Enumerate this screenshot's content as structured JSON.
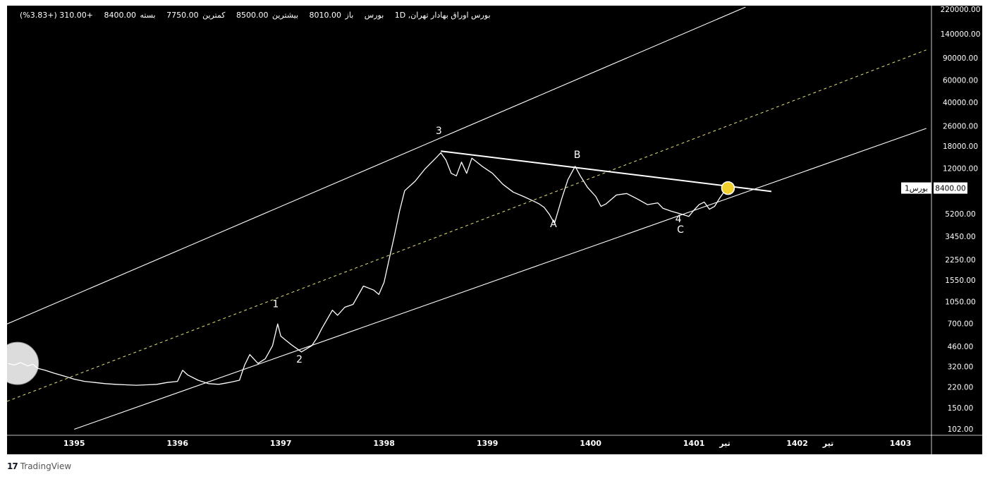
{
  "legend": {
    "symbol": "بورس اوراق بهادار تهران, 1D",
    "exchange": "بورس",
    "open_label": "باز",
    "open": "8010.00",
    "high_label": "بیشترین",
    "high": "8500.00",
    "low_label": "کمترین",
    "low": "7750.00",
    "close_label": "بسته",
    "close": "8400.00",
    "change": "+310.00 (+3.83%)"
  },
  "price_badge": {
    "label": "بورس1",
    "value": "8400.00"
  },
  "footer": {
    "logo": "17",
    "brand": "TradingView"
  },
  "colors": {
    "background": "#000000",
    "line": "#ffffff",
    "midline": "#e8e07a",
    "marker": "#f2d12e"
  },
  "chart_data": {
    "type": "line",
    "yscale": "log",
    "ylim": [
      95,
      230000
    ],
    "xlim": [
      1394.35,
      1403.3
    ],
    "y_ticks": [
      "220000.00",
      "140000.00",
      "90000.00",
      "60000.00",
      "40000.00",
      "26000.00",
      "18000.00",
      "12000.00",
      "8400.00",
      "5200.00",
      "3450.00",
      "2250.00",
      "1550.00",
      "1050.00",
      "700.00",
      "460.00",
      "320.00",
      "220.00",
      "150.00",
      "102.00"
    ],
    "y_tick_values": [
      220000,
      140000,
      90000,
      60000,
      40000,
      26000,
      18000,
      12000,
      8400,
      5200,
      3450,
      2250,
      1550,
      1050,
      700,
      460,
      320,
      220,
      150,
      102
    ],
    "x_ticks": [
      {
        "label": "1395",
        "x": 1395.0
      },
      {
        "label": "1396",
        "x": 1396.0
      },
      {
        "label": "1397",
        "x": 1397.0
      },
      {
        "label": "1398",
        "x": 1398.0
      },
      {
        "label": "1399",
        "x": 1399.0
      },
      {
        "label": "1400",
        "x": 1400.0
      },
      {
        "label": "1401",
        "x": 1401.0
      },
      {
        "label": "تیر",
        "x": 1401.3
      },
      {
        "label": "1402",
        "x": 1402.0
      },
      {
        "label": "تیر",
        "x": 1402.3
      },
      {
        "label": "1403",
        "x": 1403.0
      }
    ],
    "series": [
      {
        "points": [
          [
            1394.36,
            340
          ],
          [
            1394.42,
            330
          ],
          [
            1394.48,
            345
          ],
          [
            1394.55,
            325
          ],
          [
            1394.6,
            335
          ],
          [
            1394.65,
            310
          ],
          [
            1394.72,
            300
          ],
          [
            1394.8,
            285
          ],
          [
            1394.9,
            270
          ],
          [
            1395.0,
            255
          ],
          [
            1395.1,
            245
          ],
          [
            1395.2,
            240
          ],
          [
            1395.3,
            235
          ],
          [
            1395.4,
            232
          ],
          [
            1395.5,
            230
          ],
          [
            1395.6,
            228
          ],
          [
            1395.7,
            230
          ],
          [
            1395.8,
            232
          ],
          [
            1395.9,
            240
          ],
          [
            1396.0,
            245
          ],
          [
            1396.05,
            300
          ],
          [
            1396.1,
            275
          ],
          [
            1396.2,
            250
          ],
          [
            1396.3,
            235
          ],
          [
            1396.4,
            232
          ],
          [
            1396.5,
            240
          ],
          [
            1396.6,
            250
          ],
          [
            1396.65,
            330
          ],
          [
            1396.7,
            400
          ],
          [
            1396.78,
            340
          ],
          [
            1396.85,
            370
          ],
          [
            1396.92,
            470
          ],
          [
            1396.97,
            700
          ],
          [
            1397.0,
            560
          ],
          [
            1397.1,
            480
          ],
          [
            1397.2,
            420
          ],
          [
            1397.3,
            470
          ],
          [
            1397.35,
            540
          ],
          [
            1397.4,
            650
          ],
          [
            1397.5,
            900
          ],
          [
            1397.55,
            820
          ],
          [
            1397.62,
            950
          ],
          [
            1397.7,
            1000
          ],
          [
            1397.8,
            1400
          ],
          [
            1397.9,
            1300
          ],
          [
            1397.95,
            1200
          ],
          [
            1398.0,
            1500
          ],
          [
            1398.05,
            2300
          ],
          [
            1398.1,
            3500
          ],
          [
            1398.15,
            5500
          ],
          [
            1398.2,
            8000
          ],
          [
            1398.3,
            9500
          ],
          [
            1398.4,
            12000
          ],
          [
            1398.5,
            14500
          ],
          [
            1398.55,
            16000
          ],
          [
            1398.6,
            14000
          ],
          [
            1398.65,
            11000
          ],
          [
            1398.7,
            10500
          ],
          [
            1398.75,
            13500
          ],
          [
            1398.8,
            11000
          ],
          [
            1398.85,
            14500
          ],
          [
            1398.95,
            12500
          ],
          [
            1399.05,
            11000
          ],
          [
            1399.15,
            9000
          ],
          [
            1399.25,
            7800
          ],
          [
            1399.35,
            7200
          ],
          [
            1399.45,
            6600
          ],
          [
            1399.5,
            6300
          ],
          [
            1399.55,
            5900
          ],
          [
            1399.6,
            5200
          ],
          [
            1399.65,
            4400
          ],
          [
            1399.72,
            6900
          ],
          [
            1399.78,
            9800
          ],
          [
            1399.85,
            12500
          ],
          [
            1399.9,
            10500
          ],
          [
            1399.97,
            8500
          ],
          [
            1400.05,
            7200
          ],
          [
            1400.1,
            6000
          ],
          [
            1400.15,
            6300
          ],
          [
            1400.25,
            7400
          ],
          [
            1400.35,
            7600
          ],
          [
            1400.45,
            6900
          ],
          [
            1400.55,
            6200
          ],
          [
            1400.65,
            6400
          ],
          [
            1400.7,
            5800
          ],
          [
            1400.78,
            5500
          ],
          [
            1400.85,
            5300
          ],
          [
            1400.95,
            5000
          ],
          [
            1401.0,
            5600
          ],
          [
            1401.05,
            6200
          ],
          [
            1401.1,
            6500
          ],
          [
            1401.15,
            5700
          ],
          [
            1401.2,
            6000
          ],
          [
            1401.25,
            7000
          ],
          [
            1401.3,
            8000
          ],
          [
            1401.33,
            8400
          ]
        ]
      }
    ],
    "channel_parallel": true,
    "upper_line": [
      [
        1394.35,
        700
      ],
      [
        1401.5,
        230000
      ]
    ],
    "mid_line": [
      [
        1394.35,
        170
      ],
      [
        1403.25,
        105000
      ]
    ],
    "lower_line": [
      [
        1395.0,
        102
      ],
      [
        1403.25,
        25000
      ]
    ],
    "resistance_line": [
      [
        1398.55,
        16500
      ],
      [
        1401.75,
        7900
      ]
    ],
    "annotations": [
      {
        "label": "3",
        "x": 1398.53,
        "y": 22500
      },
      {
        "label": "1",
        "x": 1396.95,
        "y": 950
      },
      {
        "label": "2",
        "x": 1397.18,
        "y": 345
      },
      {
        "label": "B",
        "x": 1399.87,
        "y": 14500
      },
      {
        "label": "A",
        "x": 1399.64,
        "y": 4100
      },
      {
        "label": "4",
        "x": 1400.85,
        "y": 4500
      },
      {
        "label": "C",
        "x": 1400.87,
        "y": 3700
      }
    ],
    "markers": [
      {
        "name": "start-circle",
        "x": 1394.45,
        "y": 340,
        "radius": 30,
        "fill": "#dcdcdc"
      },
      {
        "name": "current-price-dot",
        "x": 1401.33,
        "y": 8400,
        "radius": 9,
        "fill": "#f2d12e"
      }
    ]
  }
}
